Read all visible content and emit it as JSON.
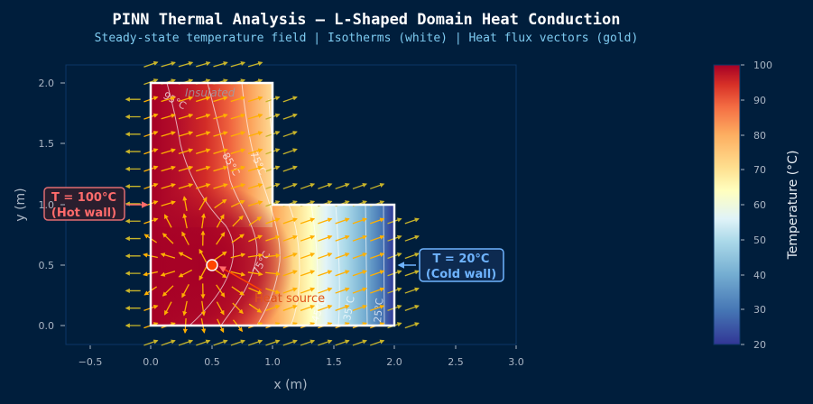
{
  "header": {
    "title": "PINN Thermal Analysis — L-Shaped Domain Heat Conduction",
    "subtitle": "Steady-state temperature field  |  Isotherms (white)  |  Heat flux vectors (gold)"
  },
  "annotations": {
    "hot_wall_line1": "T = 100°C",
    "hot_wall_line2": "(Hot wall)",
    "cold_wall_line1": "T = 20°C",
    "cold_wall_line2": "(Cold wall)",
    "heat_source": "Heat source",
    "insulated": "Insulated"
  },
  "colors": {
    "background": "#001e3c",
    "hot": "#a50026",
    "cold": "#313695",
    "hot_label": "#ff6b6b",
    "cold_label": "#6fb4ff",
    "flux": "#d4b020",
    "heat_source_dot": "#ff4500"
  },
  "chart_data": {
    "type": "heatmap",
    "title": "PINN Thermal Analysis — L-Shaped Domain Heat Conduction",
    "subtitle": "Steady-state temperature field | Isotherms (white) | Heat flux vectors (gold)",
    "xlabel": "x (m)",
    "ylabel": "y (m)",
    "xlim": [
      -0.7,
      3.0
    ],
    "ylim": [
      -0.15,
      2.15
    ],
    "xticks": [
      "−0.5",
      "0.0",
      "0.5",
      "1.0",
      "1.5",
      "2.0",
      "2.5",
      "3.0"
    ],
    "yticks": [
      "0.0",
      "0.5",
      "1.0",
      "1.5",
      "2.0"
    ],
    "domain_polygon": [
      [
        0,
        0
      ],
      [
        2,
        0
      ],
      [
        2,
        1
      ],
      [
        1,
        1
      ],
      [
        1,
        2
      ],
      [
        0,
        2
      ]
    ],
    "boundary_conditions": {
      "left_wall_x0": "T = 100°C (Hot wall)",
      "right_wall_x2": "T = 20°C (Cold wall)",
      "top_wall_y2": "Insulated"
    },
    "heat_source": {
      "x": 0.5,
      "y": 0.5,
      "label": "Heat source"
    },
    "isotherm_labels": [
      "95°C",
      "85°C",
      "75°C",
      "65°C",
      "55°C",
      "45°C",
      "35°C",
      "25°C"
    ],
    "colorbar": {
      "label": "Temperature (°C)",
      "min": 20,
      "max": 100,
      "ticks": [
        "20",
        "30",
        "40",
        "50",
        "60",
        "70",
        "80",
        "90",
        "100"
      ],
      "colormap": "RdYlBu_r"
    },
    "grid": false
  }
}
